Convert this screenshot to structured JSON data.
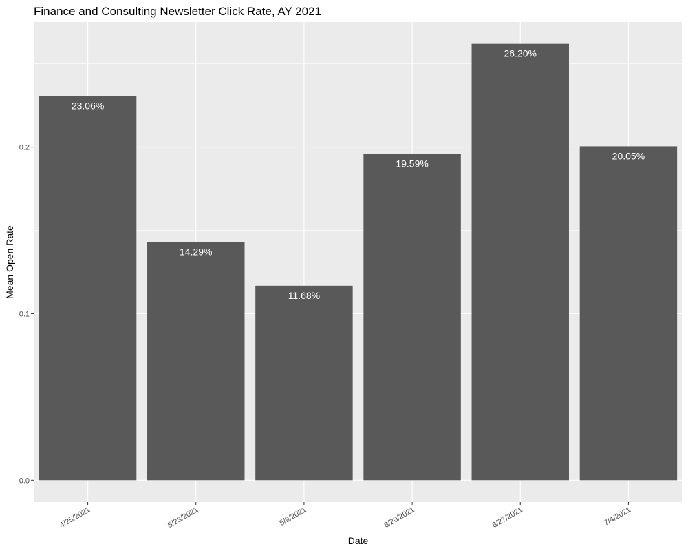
{
  "chart_data": {
    "type": "bar",
    "title": "Finance and Consulting Newsletter Click Rate, AY 2021",
    "xlabel": "Date",
    "ylabel": "Mean Open Rate",
    "categories": [
      "4/25/2021",
      "5/23/2021",
      "5/9/2021",
      "6/20/2021",
      "6/27/2021",
      "7/4/2021"
    ],
    "values": [
      0.2306,
      0.1429,
      0.1168,
      0.1959,
      0.262,
      0.2005
    ],
    "data_labels": [
      "23.06%",
      "14.29%",
      "11.68%",
      "19.59%",
      "26.20%",
      "20.05%"
    ],
    "y_ticks": [
      0.0,
      0.1,
      0.2
    ],
    "y_tick_labels": [
      "0.0",
      "0.1",
      "0.2"
    ],
    "ylim": [
      -0.0131,
      0.2751
    ],
    "grid": true,
    "legend": "none",
    "colors": {
      "panel_background": "#ebebeb",
      "grid": "#ffffff",
      "bar_fill": "#595959",
      "bar_label": "#ffffff",
      "tick_label": "#4d4d4d",
      "axis_text": "#000000"
    }
  }
}
